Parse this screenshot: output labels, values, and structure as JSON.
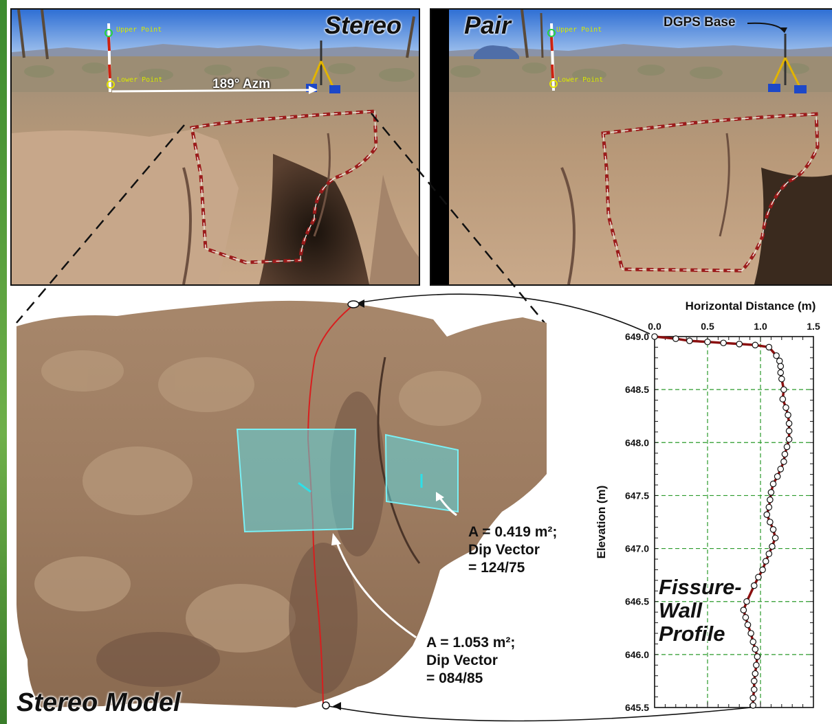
{
  "photos": {
    "left_title": "Stereo",
    "right_title": "Pair",
    "upper_point_label": "Upper Point",
    "lower_point_label": "Lower Point",
    "azimuth_label": "189° Azm",
    "dgps_label": "DGPS Base"
  },
  "model": {
    "title": "Stereo Model",
    "plane_a": {
      "area_line": "A = 0.419 m²;",
      "dip_line1": "Dip Vector",
      "dip_line2": "= 124/75"
    },
    "plane_b": {
      "area_line": "A = 1.053 m²;",
      "dip_line1": "Dip Vector",
      "dip_line2": "= 084/85"
    }
  },
  "profile_note": [
    "Fissure-",
    "Wall",
    "Profile"
  ],
  "colors": {
    "outline_dashed": "#9b1b1b",
    "plane_fill": "#5fd7e0",
    "profile_line": "#8b1010",
    "grid": "#2a9a2a"
  },
  "chart_data": {
    "type": "line",
    "title": "",
    "xlabel": "Horizontal Distance (m)",
    "ylabel": "Elevation (m)",
    "xlim": [
      0,
      1.5
    ],
    "ylim": [
      645.5,
      649.0
    ],
    "x_ticks": [
      "0.0",
      "0.5",
      "1.0",
      "1.5"
    ],
    "y_ticks": [
      "645.5",
      "646.0",
      "646.5",
      "647.0",
      "647.5",
      "648.0",
      "648.5",
      "649.0"
    ],
    "grid": true,
    "series": [
      {
        "points": [
          [
            0.0,
            649.0
          ],
          [
            0.2,
            648.98
          ],
          [
            0.33,
            648.96
          ],
          [
            0.5,
            648.95
          ],
          [
            0.65,
            648.94
          ],
          [
            0.8,
            648.93
          ],
          [
            0.95,
            648.92
          ],
          [
            1.08,
            648.9
          ],
          [
            1.15,
            648.82
          ],
          [
            1.18,
            648.77
          ],
          [
            1.19,
            648.72
          ],
          [
            1.19,
            648.66
          ],
          [
            1.2,
            648.6
          ],
          [
            1.22,
            648.5
          ],
          [
            1.21,
            648.41
          ],
          [
            1.24,
            648.33
          ],
          [
            1.26,
            648.26
          ],
          [
            1.27,
            648.18
          ],
          [
            1.27,
            648.11
          ],
          [
            1.27,
            648.03
          ],
          [
            1.25,
            647.96
          ],
          [
            1.23,
            647.89
          ],
          [
            1.22,
            647.82
          ],
          [
            1.19,
            647.75
          ],
          [
            1.16,
            647.68
          ],
          [
            1.12,
            647.61
          ],
          [
            1.1,
            647.53
          ],
          [
            1.09,
            647.46
          ],
          [
            1.08,
            647.39
          ],
          [
            1.06,
            647.32
          ],
          [
            1.09,
            647.25
          ],
          [
            1.12,
            647.18
          ],
          [
            1.14,
            647.1
          ],
          [
            1.11,
            647.02
          ],
          [
            1.08,
            646.95
          ],
          [
            1.05,
            646.88
          ],
          [
            1.02,
            646.8
          ],
          [
            0.98,
            646.73
          ],
          [
            0.94,
            646.65
          ],
          [
            0.87,
            646.5
          ],
          [
            0.84,
            646.42
          ],
          [
            0.86,
            646.35
          ],
          [
            0.88,
            646.28
          ],
          [
            0.91,
            646.2
          ],
          [
            0.93,
            646.12
          ],
          [
            0.95,
            646.05
          ],
          [
            0.97,
            645.98
          ],
          [
            0.96,
            645.9
          ],
          [
            0.95,
            645.82
          ],
          [
            0.94,
            645.75
          ],
          [
            0.94,
            645.67
          ],
          [
            0.93,
            645.59
          ],
          [
            0.93,
            645.52
          ]
        ]
      }
    ]
  }
}
